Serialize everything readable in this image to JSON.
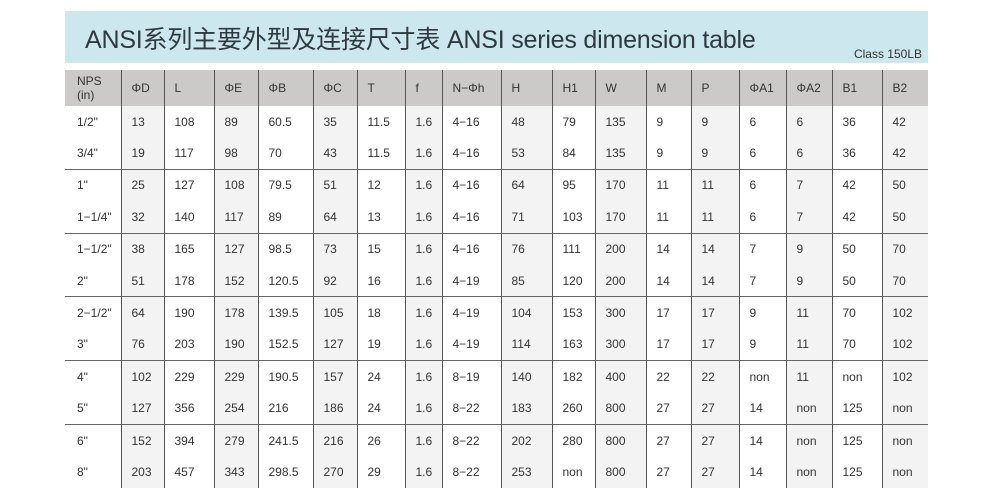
{
  "title": "ANSI系列主要外型及连接尺寸表 ANSI series dimension table",
  "class_label": "Class 150LB",
  "columns": [
    "NPS\n(in)",
    "ΦD",
    "L",
    "ΦE",
    "ΦB",
    "ΦC",
    "T",
    "f",
    "N−Φh",
    "H",
    "H1",
    "W",
    "M",
    "P",
    "ΦA1",
    "ΦA2",
    "B1",
    "B2"
  ],
  "rows": [
    [
      "1/2\"",
      "13",
      "108",
      "89",
      "60.5",
      "35",
      "11.5",
      "1.6",
      "4−16",
      "48",
      "79",
      "135",
      "9",
      "9",
      "6",
      "6",
      "36",
      "42"
    ],
    [
      "3/4\"",
      "19",
      "117",
      "98",
      "70",
      "43",
      "11.5",
      "1.6",
      "4−16",
      "53",
      "84",
      "135",
      "9",
      "9",
      "6",
      "6",
      "36",
      "42"
    ],
    [
      "1\"",
      "25",
      "127",
      "108",
      "79.5",
      "51",
      "12",
      "1.6",
      "4−16",
      "64",
      "95",
      "170",
      "11",
      "11",
      "6",
      "7",
      "42",
      "50"
    ],
    [
      "1−1/4\"",
      "32",
      "140",
      "117",
      "89",
      "64",
      "13",
      "1.6",
      "4−16",
      "71",
      "103",
      "170",
      "11",
      "11",
      "6",
      "7",
      "42",
      "50"
    ],
    [
      "1−1/2\"",
      "38",
      "165",
      "127",
      "98.5",
      "73",
      "15",
      "1.6",
      "4−16",
      "76",
      "111",
      "200",
      "14",
      "14",
      "7",
      "9",
      "50",
      "70"
    ],
    [
      "2\"",
      "51",
      "178",
      "152",
      "120.5",
      "92",
      "16",
      "1.6",
      "4−19",
      "85",
      "120",
      "200",
      "14",
      "14",
      "7",
      "9",
      "50",
      "70"
    ],
    [
      "2−1/2\"",
      "64",
      "190",
      "178",
      "139.5",
      "105",
      "18",
      "1.6",
      "4−19",
      "104",
      "153",
      "300",
      "17",
      "17",
      "9",
      "11",
      "70",
      "102"
    ],
    [
      "3\"",
      "76",
      "203",
      "190",
      "152.5",
      "127",
      "19",
      "1.6",
      "4−19",
      "114",
      "163",
      "300",
      "17",
      "17",
      "9",
      "11",
      "70",
      "102"
    ],
    [
      "4\"",
      "102",
      "229",
      "229",
      "190.5",
      "157",
      "24",
      "1.6",
      "8−19",
      "140",
      "182",
      "400",
      "22",
      "22",
      "non",
      "11",
      "non",
      "102"
    ],
    [
      "5\"",
      "127",
      "356",
      "254",
      "216",
      "186",
      "24",
      "1.6",
      "8−22",
      "183",
      "260",
      "800",
      "27",
      "27",
      "14",
      "non",
      "125",
      "non"
    ],
    [
      "6\"",
      "152",
      "394",
      "279",
      "241.5",
      "216",
      "26",
      "1.6",
      "8−22",
      "202",
      "280",
      "800",
      "27",
      "27",
      "14",
      "non",
      "125",
      "non"
    ],
    [
      "8\"",
      "203",
      "457",
      "343",
      "298.5",
      "270",
      "29",
      "1.6",
      "8−22",
      "253",
      "non",
      "800",
      "27",
      "27",
      "14",
      "non",
      "125",
      "non"
    ]
  ]
}
